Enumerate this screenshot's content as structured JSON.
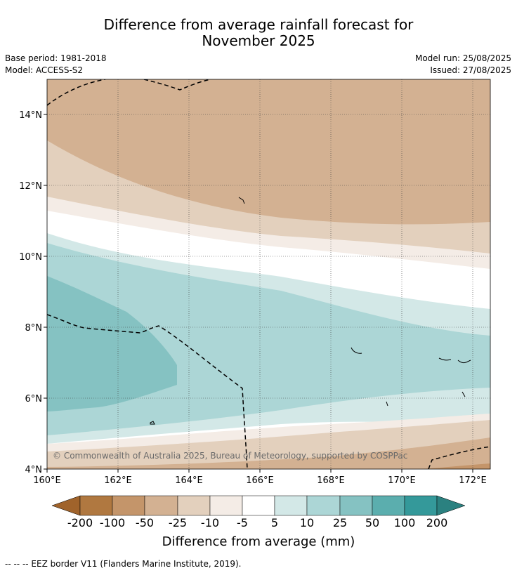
{
  "title_line1": "Difference from average rainfall forecast for",
  "title_line2": "November 2025",
  "base_period": "Base period: 1981-2018",
  "model": "Model: ACCESS-S2",
  "model_run": "Model run: 25/08/2025",
  "issued": "Issued: 27/08/2025",
  "copyright": "© Commonwealth of Australia 2025, Bureau of Meteorology, supported by COSPPac",
  "x_ticks": [
    "160°E",
    "162°E",
    "164°E",
    "166°E",
    "168°E",
    "170°E",
    "172°E"
  ],
  "y_ticks": [
    "14°N",
    "12°N",
    "10°N",
    "8°N",
    "6°N",
    "4°N"
  ],
  "colorbar": {
    "title": "Difference from average (mm)",
    "labels": [
      "-200",
      "-100",
      "-50",
      "-25",
      "-10",
      "-5",
      "5",
      "10",
      "25",
      "50",
      "100",
      "200"
    ],
    "colors": [
      "#a0632b",
      "#b07840",
      "#c4956a",
      "#d3b192",
      "#e3d0bd",
      "#f4ece6",
      "#ffffff",
      "#d3e8e7",
      "#acd6d6",
      "#85c2c2",
      "#5baeae",
      "#34999a",
      "#2b8180"
    ]
  },
  "footer": "-- -- -- EEZ border V11 (Flanders Marine Institute, 2019)."
}
